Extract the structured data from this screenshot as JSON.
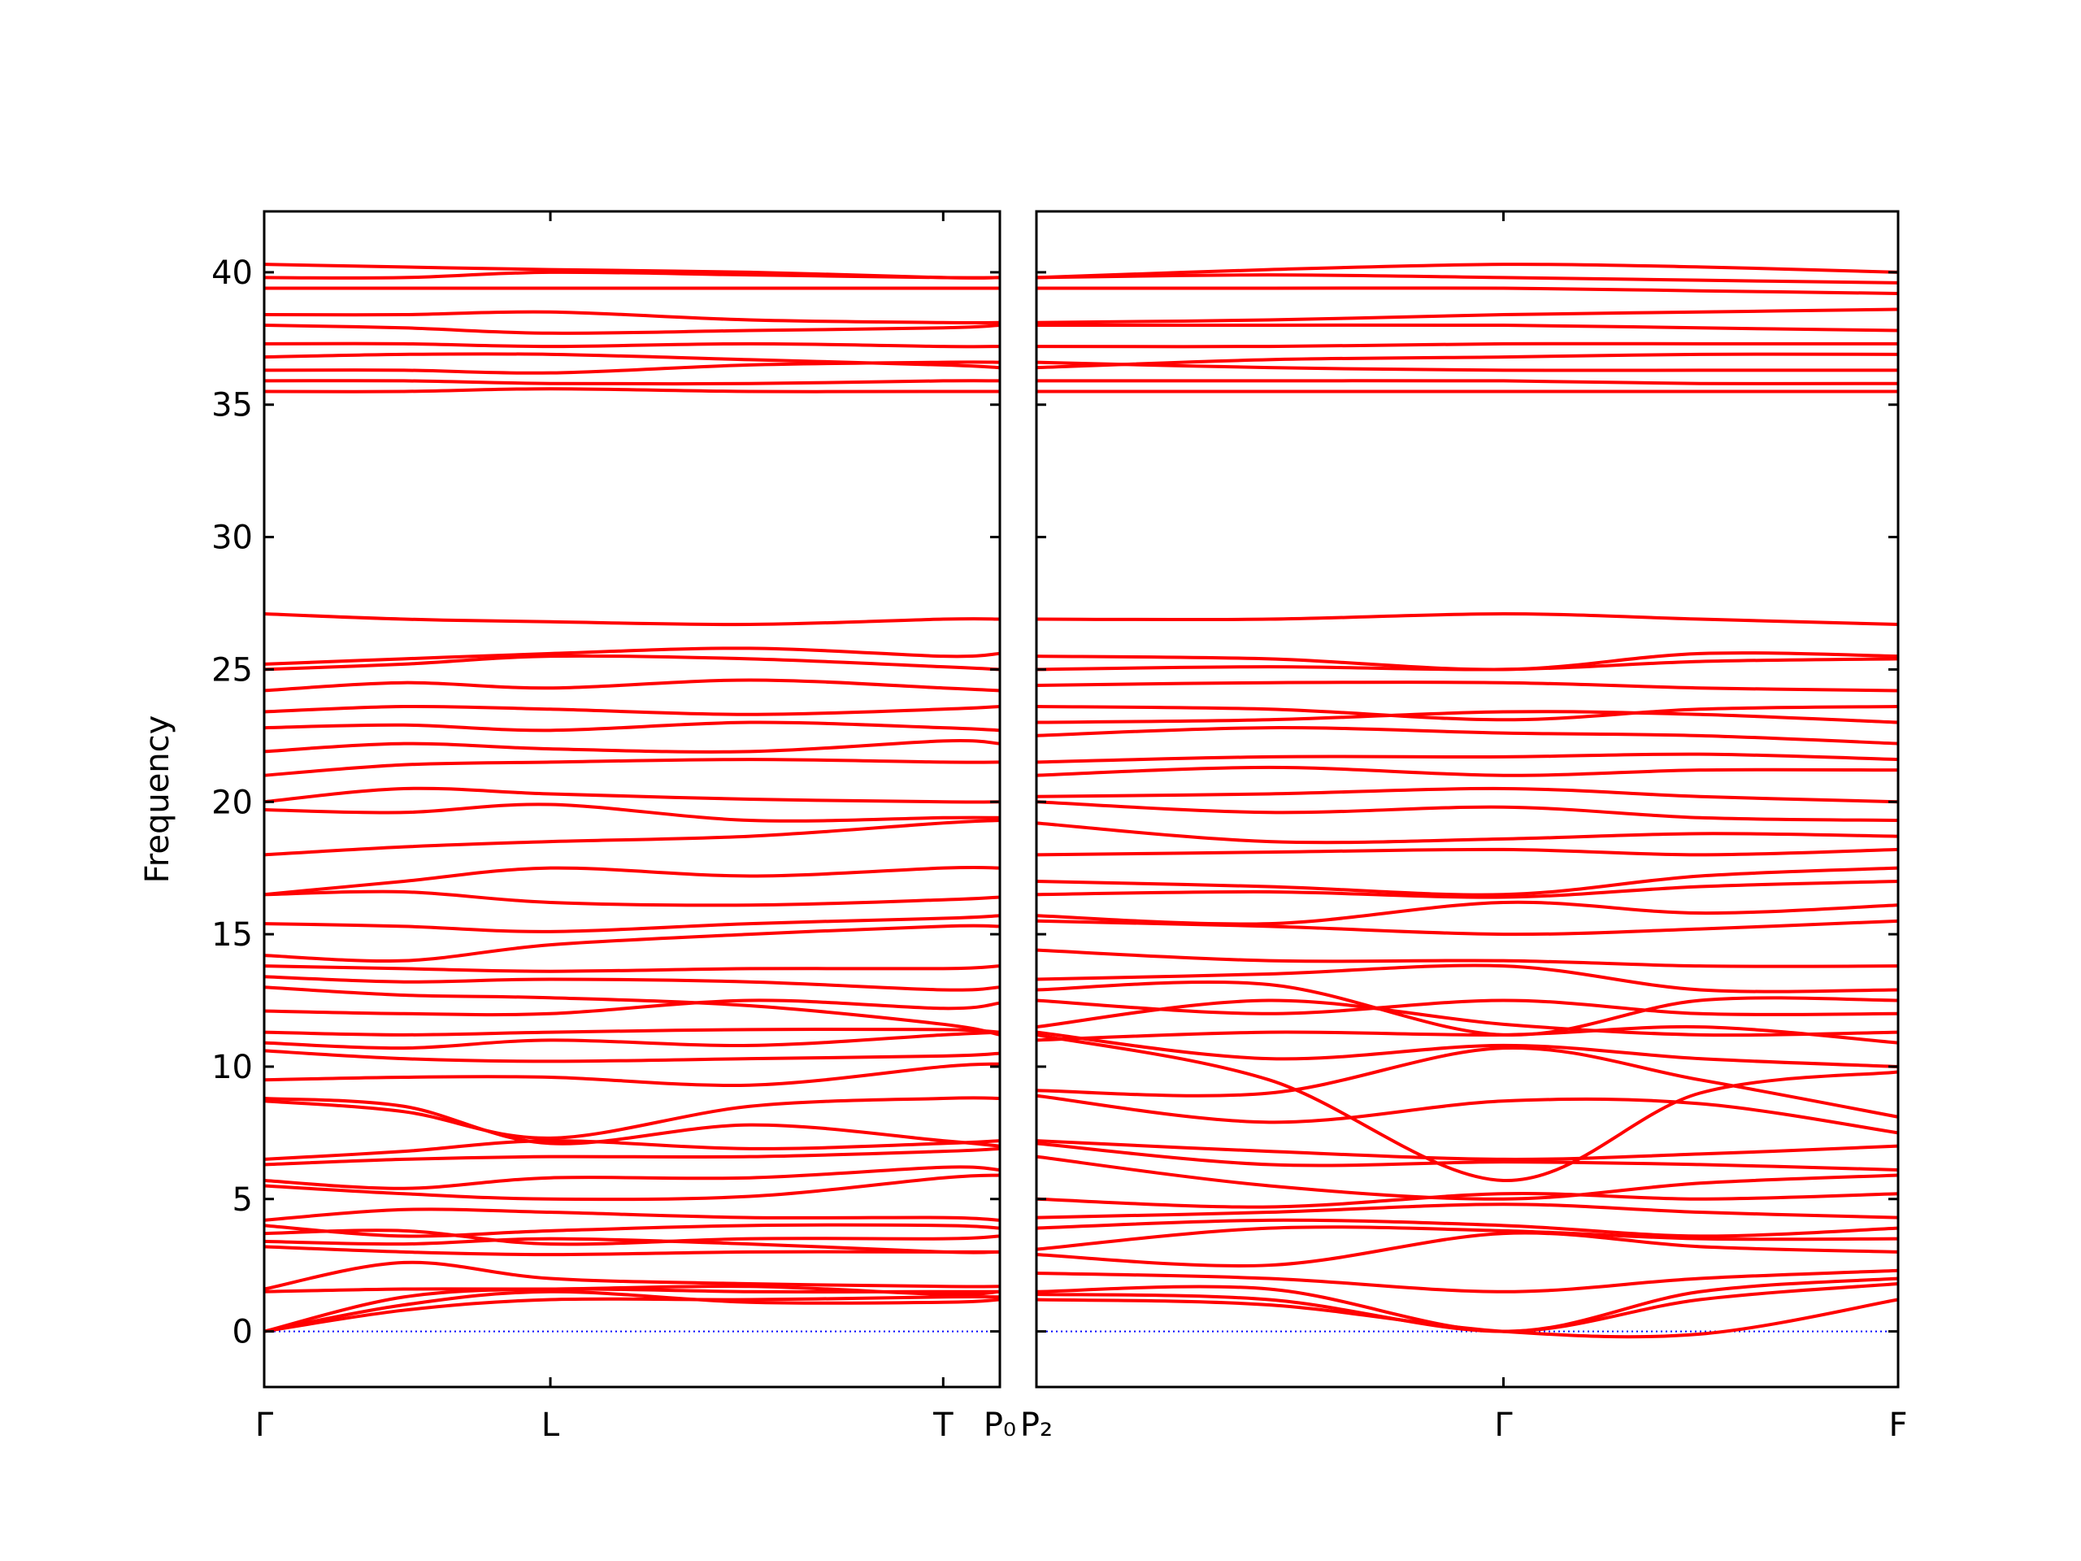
{
  "chart_data": [
    {
      "type": "line",
      "ylabel": "Frequency",
      "line_color": "#ff0000",
      "hline": 0,
      "hline_color": "#0000ff",
      "show_ytick_labels": true,
      "x": [
        0,
        0.19,
        0.389,
        0.66,
        0.923,
        1.0
      ],
      "xlim": [
        0,
        1.0
      ],
      "xticks": [
        {
          "value": 0,
          "label": "Γ"
        },
        {
          "value": 0.389,
          "label": "L"
        },
        {
          "value": 0.923,
          "label": "T"
        },
        {
          "value": 1.0,
          "label": "P₀"
        }
      ],
      "ylim": [
        -2.1,
        42.3
      ],
      "yticks": [
        0,
        5,
        10,
        15,
        20,
        25,
        30,
        35,
        40
      ],
      "series": [
        {
          "values": [
            0,
            0.8,
            1.2,
            1.2,
            1.3,
            1.3
          ]
        },
        {
          "values": [
            0,
            1.0,
            1.5,
            1.1,
            1.1,
            1.2
          ]
        },
        {
          "values": [
            0,
            1.3,
            1.6,
            1.5,
            1.5,
            1.5
          ]
        },
        {
          "values": [
            1.5,
            1.6,
            1.6,
            1.7,
            1.4,
            1.5
          ]
        },
        {
          "values": [
            1.6,
            2.6,
            2.0,
            1.8,
            1.7,
            1.7
          ]
        },
        {
          "values": [
            3.2,
            3.0,
            2.9,
            3.0,
            3.0,
            3.0
          ]
        },
        {
          "values": [
            3.4,
            3.3,
            3.5,
            3.3,
            3.0,
            3.0
          ]
        },
        {
          "values": [
            3.7,
            3.8,
            3.3,
            3.5,
            3.5,
            3.6
          ]
        },
        {
          "values": [
            4.0,
            3.6,
            3.8,
            4.0,
            4.0,
            3.9
          ]
        },
        {
          "values": [
            4.2,
            4.6,
            4.5,
            4.3,
            4.3,
            4.2
          ]
        },
        {
          "values": [
            5.5,
            5.2,
            5.0,
            5.1,
            5.8,
            5.9
          ]
        },
        {
          "values": [
            5.7,
            5.4,
            5.8,
            5.8,
            6.2,
            6.1
          ]
        },
        {
          "values": [
            6.3,
            6.5,
            6.6,
            6.6,
            6.8,
            6.9
          ]
        },
        {
          "values": [
            6.5,
            6.8,
            7.2,
            6.9,
            7.1,
            7.2
          ]
        },
        {
          "values": [
            8.7,
            8.3,
            7.3,
            8.5,
            8.8,
            8.8
          ]
        },
        {
          "values": [
            8.8,
            8.5,
            7.1,
            7.8,
            7.2,
            7.0
          ]
        },
        {
          "values": [
            9.5,
            9.6,
            9.6,
            9.3,
            10.0,
            10.1
          ]
        },
        {
          "values": [
            10.6,
            10.3,
            10.2,
            10.3,
            10.4,
            10.5
          ]
        },
        {
          "values": [
            10.9,
            10.7,
            11.0,
            10.8,
            11.2,
            11.3
          ]
        },
        {
          "values": [
            11.3,
            11.2,
            11.3,
            11.4,
            11.4,
            11.3
          ]
        },
        {
          "values": [
            12.1,
            12.0,
            12.0,
            12.5,
            12.2,
            12.4
          ]
        },
        {
          "values": [
            13.0,
            12.7,
            12.6,
            12.3,
            11.6,
            11.2
          ]
        },
        {
          "values": [
            13.4,
            13.2,
            13.3,
            13.2,
            12.9,
            13.0
          ]
        },
        {
          "values": [
            13.8,
            13.7,
            13.6,
            13.7,
            13.7,
            13.8
          ]
        },
        {
          "values": [
            14.2,
            14.0,
            14.6,
            15.0,
            15.3,
            15.3
          ]
        },
        {
          "values": [
            15.4,
            15.3,
            15.1,
            15.4,
            15.6,
            15.7
          ]
        },
        {
          "values": [
            16.5,
            16.6,
            16.2,
            16.1,
            16.3,
            16.4
          ]
        },
        {
          "values": [
            16.5,
            17.0,
            17.5,
            17.2,
            17.5,
            17.5
          ]
        },
        {
          "values": [
            18.0,
            18.3,
            18.5,
            18.7,
            19.2,
            19.3
          ]
        },
        {
          "values": [
            19.7,
            19.6,
            19.9,
            19.3,
            19.4,
            19.4
          ]
        },
        {
          "values": [
            20.0,
            20.5,
            20.3,
            20.1,
            20.0,
            20.0
          ]
        },
        {
          "values": [
            21.0,
            21.4,
            21.5,
            21.6,
            21.5,
            21.5
          ]
        },
        {
          "values": [
            21.9,
            22.2,
            22.0,
            21.9,
            22.3,
            22.2
          ]
        },
        {
          "values": [
            22.8,
            22.9,
            22.7,
            23.0,
            22.8,
            22.7
          ]
        },
        {
          "values": [
            23.4,
            23.6,
            23.5,
            23.3,
            23.5,
            23.6
          ]
        },
        {
          "values": [
            24.2,
            24.5,
            24.3,
            24.6,
            24.3,
            24.2
          ]
        },
        {
          "values": [
            25.0,
            25.2,
            25.5,
            25.4,
            25.1,
            25.0
          ]
        },
        {
          "values": [
            25.2,
            25.4,
            25.6,
            25.8,
            25.5,
            25.6
          ]
        },
        {
          "values": [
            27.1,
            26.9,
            26.8,
            26.7,
            26.9,
            26.9
          ]
        },
        {
          "values": [
            35.5,
            35.5,
            35.6,
            35.5,
            35.5,
            35.5
          ]
        },
        {
          "values": [
            35.9,
            35.9,
            35.8,
            35.8,
            35.9,
            35.9
          ]
        },
        {
          "values": [
            36.3,
            36.3,
            36.2,
            36.5,
            36.6,
            36.6
          ]
        },
        {
          "values": [
            36.8,
            36.9,
            36.9,
            36.7,
            36.5,
            36.4
          ]
        },
        {
          "values": [
            37.3,
            37.3,
            37.2,
            37.3,
            37.2,
            37.2
          ]
        },
        {
          "values": [
            38.0,
            37.9,
            37.7,
            37.8,
            37.9,
            38.0
          ]
        },
        {
          "values": [
            38.4,
            38.4,
            38.5,
            38.2,
            38.1,
            38.1
          ]
        },
        {
          "values": [
            39.4,
            39.4,
            39.4,
            39.4,
            39.4,
            39.4
          ]
        },
        {
          "values": [
            39.8,
            39.8,
            40.0,
            39.9,
            39.8,
            39.8
          ]
        },
        {
          "values": [
            40.3,
            40.2,
            40.1,
            40.0,
            39.8,
            39.8
          ]
        }
      ]
    },
    {
      "type": "line",
      "line_color": "#ff0000",
      "hline": 0,
      "hline_color": "#0000ff",
      "show_ytick_labels": false,
      "x": [
        0,
        0.27,
        0.542,
        0.77,
        1.0
      ],
      "xlim": [
        0,
        1.0
      ],
      "xticks": [
        {
          "value": 0,
          "label": "P₂"
        },
        {
          "value": 0.542,
          "label": "Γ"
        },
        {
          "value": 1.0,
          "label": "F"
        }
      ],
      "ylim": [
        -2.1,
        42.3
      ],
      "yticks": [
        0,
        5,
        10,
        15,
        20,
        25,
        30,
        35,
        40
      ],
      "series": [
        {
          "values": [
            1.2,
            1.0,
            0,
            -0.1,
            1.2
          ]
        },
        {
          "values": [
            1.4,
            1.2,
            0,
            1.2,
            1.8
          ]
        },
        {
          "values": [
            1.5,
            1.6,
            0,
            1.5,
            2.0
          ]
        },
        {
          "values": [
            2.2,
            2.0,
            1.5,
            2.0,
            2.3
          ]
        },
        {
          "values": [
            2.9,
            2.5,
            3.7,
            3.2,
            3.0
          ]
        },
        {
          "values": [
            3.1,
            3.9,
            3.8,
            3.5,
            3.5
          ]
        },
        {
          "values": [
            3.9,
            4.2,
            4.0,
            3.6,
            3.9
          ]
        },
        {
          "values": [
            4.3,
            4.5,
            4.8,
            4.5,
            4.3
          ]
        },
        {
          "values": [
            5.0,
            4.7,
            5.2,
            5.0,
            5.2
          ]
        },
        {
          "values": [
            6.6,
            5.5,
            5.0,
            5.6,
            5.9
          ]
        },
        {
          "values": [
            7.1,
            6.3,
            6.4,
            6.3,
            6.1
          ]
        },
        {
          "values": [
            7.2,
            6.8,
            6.5,
            6.7,
            7.0
          ]
        },
        {
          "values": [
            8.9,
            7.9,
            8.7,
            8.6,
            7.5
          ]
        },
        {
          "values": [
            9.1,
            9.0,
            10.7,
            9.5,
            8.1
          ]
        },
        {
          "values": [
            11.2,
            9.5,
            5.7,
            9.0,
            9.8
          ]
        },
        {
          "values": [
            11.3,
            10.3,
            10.8,
            10.3,
            10.0
          ]
        },
        {
          "values": [
            11.0,
            11.3,
            11.2,
            11.5,
            10.9
          ]
        },
        {
          "values": [
            11.5,
            12.5,
            11.6,
            11.2,
            11.3
          ]
        },
        {
          "values": [
            12.5,
            12.0,
            12.5,
            12.0,
            12.0
          ]
        },
        {
          "values": [
            12.9,
            13.1,
            11.2,
            12.5,
            12.5
          ]
        },
        {
          "values": [
            13.3,
            13.5,
            13.8,
            12.9,
            12.9
          ]
        },
        {
          "values": [
            14.4,
            14.0,
            14.0,
            13.8,
            13.8
          ]
        },
        {
          "values": [
            15.5,
            15.3,
            15.0,
            15.2,
            15.5
          ]
        },
        {
          "values": [
            15.7,
            15.4,
            16.2,
            15.8,
            16.1
          ]
        },
        {
          "values": [
            16.5,
            16.6,
            16.4,
            16.8,
            17.0
          ]
        },
        {
          "values": [
            17.0,
            16.8,
            16.5,
            17.2,
            17.5
          ]
        },
        {
          "values": [
            18.0,
            18.1,
            18.2,
            18.0,
            18.2
          ]
        },
        {
          "values": [
            19.2,
            18.5,
            18.6,
            18.8,
            18.7
          ]
        },
        {
          "values": [
            20.0,
            19.6,
            19.8,
            19.4,
            19.3
          ]
        },
        {
          "values": [
            20.2,
            20.3,
            20.5,
            20.2,
            20.0
          ]
        },
        {
          "values": [
            21.0,
            21.3,
            21.0,
            21.2,
            21.2
          ]
        },
        {
          "values": [
            21.5,
            21.7,
            21.7,
            21.8,
            21.6
          ]
        },
        {
          "values": [
            22.5,
            22.8,
            22.6,
            22.5,
            22.2
          ]
        },
        {
          "values": [
            23.0,
            23.1,
            23.4,
            23.3,
            23.0
          ]
        },
        {
          "values": [
            23.6,
            23.5,
            23.1,
            23.5,
            23.6
          ]
        },
        {
          "values": [
            24.4,
            24.5,
            24.5,
            24.3,
            24.2
          ]
        },
        {
          "values": [
            25.0,
            25.1,
            25.0,
            25.3,
            25.4
          ]
        },
        {
          "values": [
            25.5,
            25.4,
            25.0,
            25.6,
            25.5
          ]
        },
        {
          "values": [
            26.9,
            26.9,
            27.1,
            26.9,
            26.7
          ]
        },
        {
          "values": [
            35.5,
            35.5,
            35.5,
            35.5,
            35.5
          ]
        },
        {
          "values": [
            35.9,
            35.9,
            35.9,
            35.8,
            35.8
          ]
        },
        {
          "values": [
            36.6,
            36.4,
            36.3,
            36.3,
            36.3
          ]
        },
        {
          "values": [
            36.4,
            36.7,
            36.8,
            36.9,
            36.9
          ]
        },
        {
          "values": [
            37.2,
            37.2,
            37.3,
            37.3,
            37.3
          ]
        },
        {
          "values": [
            38.0,
            38.0,
            38.0,
            37.9,
            37.8
          ]
        },
        {
          "values": [
            38.1,
            38.2,
            38.4,
            38.5,
            38.6
          ]
        },
        {
          "values": [
            39.4,
            39.4,
            39.4,
            39.3,
            39.2
          ]
        },
        {
          "values": [
            39.8,
            39.9,
            39.8,
            39.7,
            39.6
          ]
        },
        {
          "values": [
            39.8,
            40.1,
            40.3,
            40.2,
            40.0
          ]
        }
      ]
    }
  ]
}
